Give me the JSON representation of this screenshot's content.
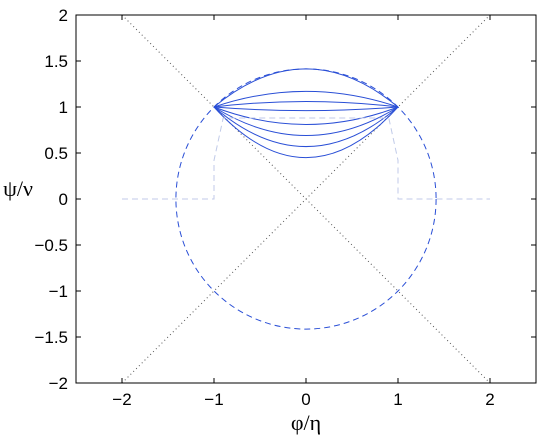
{
  "chart_data": {
    "type": "line",
    "title": "",
    "xlabel": "φ/η",
    "ylabel": "ψ/ν",
    "xlim": [
      -2.5,
      2.5
    ],
    "ylim": [
      -2,
      2
    ],
    "xticks": [
      -2,
      -1,
      0,
      1,
      2
    ],
    "xtick_labels": [
      "−2",
      "−1",
      "0",
      "1",
      "2"
    ],
    "yticks": [
      -2,
      -1.5,
      -1,
      -0.5,
      0,
      0.5,
      1,
      1.5,
      2
    ],
    "ytick_labels": [
      "−2",
      "−1.5",
      "−1",
      "−0.5",
      "0",
      "0.5",
      "1",
      "1.5",
      "2"
    ],
    "grid": false,
    "legend": "none",
    "colors": {
      "solid_curves": "#2a4fd6",
      "dashed_circle": "#2a4fd6",
      "faint_dashed": "#c0cae8",
      "dotted_diagonals": "#555555",
      "axes": "#000000"
    },
    "series": [
      {
        "style": "dashed",
        "shape": "circle",
        "center": [
          0,
          0
        ],
        "radius": 1.414
      },
      {
        "style": "dotted",
        "x": [
          -2,
          2
        ],
        "y": [
          -2,
          2
        ]
      },
      {
        "style": "dotted",
        "x": [
          -2,
          2
        ],
        "y": [
          2,
          -2
        ]
      },
      {
        "style": "solid",
        "endpoints": [
          [
            -1,
            1
          ],
          [
            1,
            1
          ]
        ],
        "mid_y": 1.414
      },
      {
        "style": "solid",
        "endpoints": [
          [
            -1,
            1
          ],
          [
            1,
            1
          ]
        ],
        "mid_y": 1.17
      },
      {
        "style": "solid",
        "endpoints": [
          [
            -1,
            1
          ],
          [
            1,
            1
          ]
        ],
        "mid_y": 1.06
      },
      {
        "style": "solid",
        "endpoints": [
          [
            -1,
            1
          ],
          [
            1,
            1
          ]
        ],
        "mid_y": 0.96
      },
      {
        "style": "solid",
        "endpoints": [
          [
            -1,
            1
          ],
          [
            1,
            1
          ]
        ],
        "mid_y": 0.81
      },
      {
        "style": "solid",
        "endpoints": [
          [
            -1,
            1
          ],
          [
            1,
            1
          ]
        ],
        "mid_y": 0.69
      },
      {
        "style": "solid",
        "endpoints": [
          [
            -1,
            1
          ],
          [
            1,
            1
          ]
        ],
        "mid_y": 0.57
      },
      {
        "style": "solid",
        "endpoints": [
          [
            -1,
            1
          ],
          [
            1,
            1
          ]
        ],
        "mid_y": 0.45
      },
      {
        "style": "faint-dashed",
        "x": [
          -2,
          -1,
          -1,
          -0.9,
          0.9,
          1,
          1,
          2
        ],
        "y": [
          0,
          0,
          0.42,
          0.88,
          0.88,
          0.42,
          0,
          0
        ]
      }
    ]
  }
}
